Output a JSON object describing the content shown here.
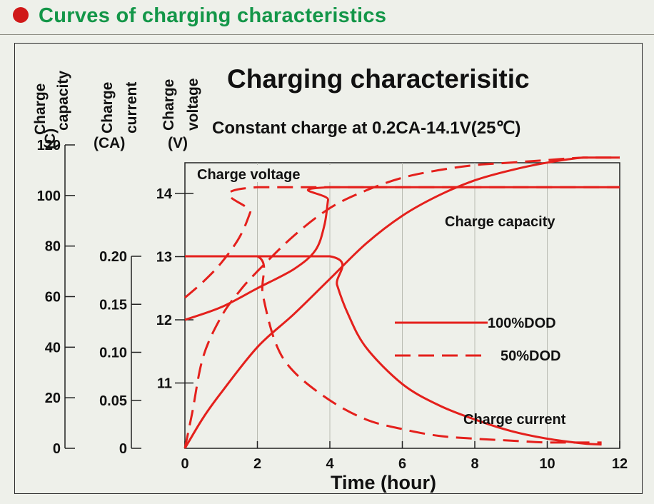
{
  "header": {
    "title": "Curves of charging characteristics"
  },
  "chart_data": {
    "type": "line",
    "title": "Charging characterisitic",
    "subtitle": "Constant charge at 0.2CA-14.1V(25℃)",
    "xlabel": "Time (hour)",
    "x_ticks": [
      "0",
      "2",
      "4",
      "6",
      "8",
      "10",
      "12"
    ],
    "xlim": [
      0,
      12
    ],
    "axes": [
      {
        "id": "capacity",
        "label_top": "Charge",
        "label_bottom": "(C)",
        "label_right": "capacity",
        "ylim": [
          0,
          120
        ],
        "ticks": [
          "0",
          "20",
          "40",
          "60",
          "80",
          "100",
          "120"
        ]
      },
      {
        "id": "current",
        "label_top": "Charge",
        "label_bottom": "(CA)",
        "label_right": "current",
        "ylim": [
          0,
          0.2
        ],
        "ticks": [
          "0",
          "0.05",
          "0.10",
          "0.15",
          "0.20"
        ]
      },
      {
        "id": "voltage",
        "label_top": "Charge",
        "label_bottom": "(V)",
        "label_right": "voltage",
        "ylim": [
          10,
          14.1
        ],
        "ticks": [
          "11",
          "12",
          "13",
          "14"
        ]
      }
    ],
    "curve_labels": {
      "voltage": "Charge voltage",
      "capacity": "Charge capacity",
      "current": "Charge current"
    },
    "legend": [
      {
        "name": "100%DOD",
        "style": "solid"
      },
      {
        "name": "50%DOD",
        "style": "dashed"
      }
    ],
    "line_color": "#e4201c",
    "series": [
      {
        "quantity": "voltage",
        "dod": "100%DOD",
        "axis": "voltage",
        "points": [
          [
            0,
            12.0
          ],
          [
            1,
            12.2
          ],
          [
            2,
            12.5
          ],
          [
            3,
            12.8
          ],
          [
            3.6,
            13.1
          ],
          [
            3.85,
            13.5
          ],
          [
            3.95,
            13.9
          ],
          [
            4,
            14.1
          ],
          [
            12,
            14.1
          ]
        ]
      },
      {
        "quantity": "voltage",
        "dod": "50%DOD",
        "axis": "voltage",
        "points": [
          [
            0,
            12.35
          ],
          [
            0.5,
            12.6
          ],
          [
            1,
            12.9
          ],
          [
            1.5,
            13.3
          ],
          [
            1.8,
            13.7
          ],
          [
            2,
            14.1
          ],
          [
            12,
            14.1
          ]
        ]
      },
      {
        "quantity": "current",
        "dod": "100%DOD",
        "axis": "current",
        "points": [
          [
            0,
            0.2
          ],
          [
            4,
            0.2
          ],
          [
            4.2,
            0.17
          ],
          [
            4.5,
            0.14
          ],
          [
            5,
            0.105
          ],
          [
            6,
            0.067
          ],
          [
            7,
            0.045
          ],
          [
            8,
            0.03
          ],
          [
            9,
            0.018
          ],
          [
            10,
            0.01
          ],
          [
            11,
            0.005
          ],
          [
            11.5,
            0.004
          ]
        ]
      },
      {
        "quantity": "current",
        "dod": "50%DOD",
        "axis": "current",
        "points": [
          [
            0,
            0.2
          ],
          [
            2,
            0.2
          ],
          [
            2.15,
            0.16
          ],
          [
            2.5,
            0.11
          ],
          [
            3,
            0.08
          ],
          [
            4,
            0.05
          ],
          [
            5,
            0.03
          ],
          [
            6,
            0.02
          ],
          [
            7,
            0.013
          ],
          [
            8,
            0.01
          ],
          [
            9,
            0.008
          ],
          [
            10,
            0.006
          ],
          [
            11,
            0.006
          ],
          [
            11.5,
            0.006
          ]
        ]
      },
      {
        "quantity": "capacity",
        "dod": "100%DOD",
        "axis": "capacity",
        "points": [
          [
            0,
            0
          ],
          [
            0.5,
            12
          ],
          [
            1,
            22
          ],
          [
            2,
            40
          ],
          [
            3,
            53
          ],
          [
            4,
            67
          ],
          [
            5,
            81
          ],
          [
            6,
            92
          ],
          [
            7,
            100
          ],
          [
            8,
            106
          ],
          [
            9,
            110
          ],
          [
            10,
            113
          ],
          [
            11,
            115
          ],
          [
            12,
            115
          ]
        ]
      },
      {
        "quantity": "capacity",
        "dod": "50%DOD",
        "axis": "capacity",
        "points": [
          [
            0,
            0
          ],
          [
            0.2,
            14
          ],
          [
            0.5,
            36
          ],
          [
            1,
            52
          ],
          [
            1.5,
            62
          ],
          [
            2,
            70
          ],
          [
            3,
            84
          ],
          [
            4,
            95
          ],
          [
            5,
            102
          ],
          [
            6,
            107
          ],
          [
            7,
            110
          ],
          [
            8,
            112
          ],
          [
            9,
            113
          ],
          [
            10,
            114
          ],
          [
            11,
            115
          ],
          [
            12,
            115
          ]
        ]
      }
    ]
  }
}
